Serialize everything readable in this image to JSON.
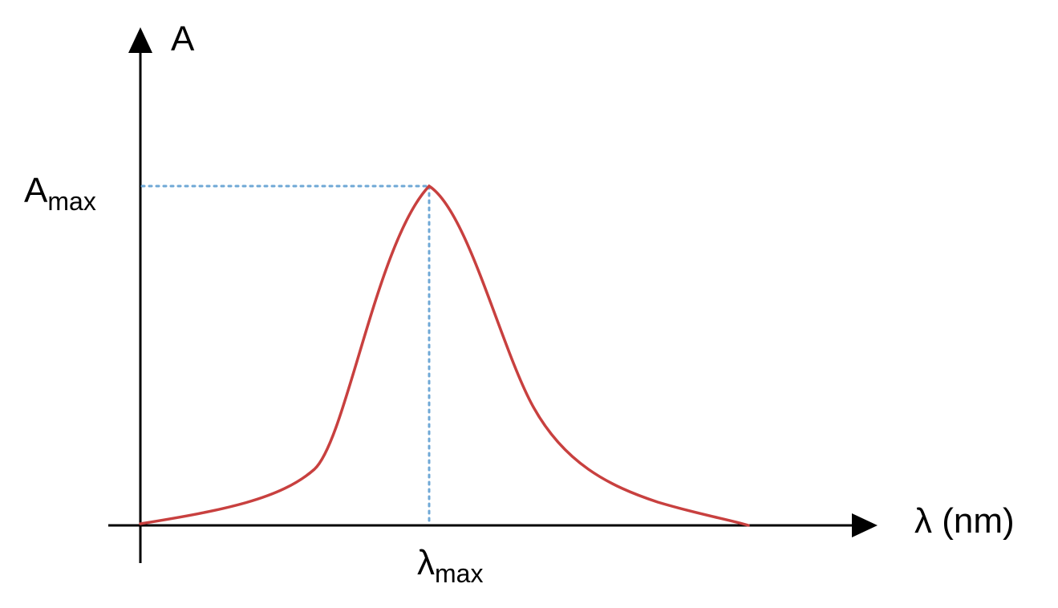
{
  "labels": {
    "y_axis": "A",
    "x_axis": "λ (nm)",
    "a_max": {
      "main": "A",
      "sub": "max"
    },
    "lambda_max": {
      "main": "λ",
      "sub": "max"
    }
  }
}
